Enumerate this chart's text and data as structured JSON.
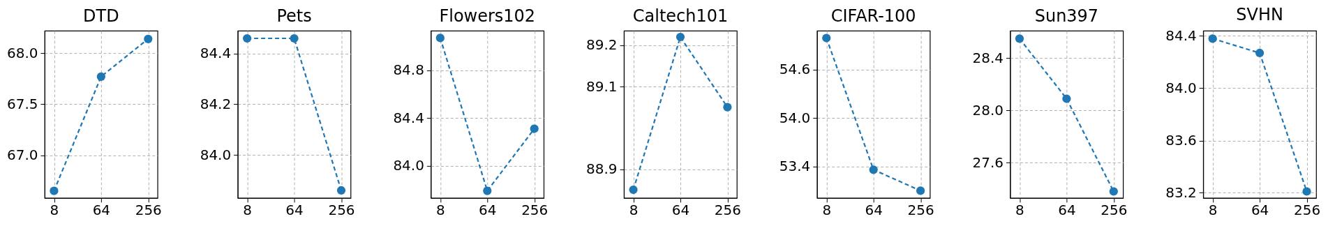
{
  "chart_data": [
    {
      "type": "line",
      "title": "DTD",
      "categories": [
        "8",
        "64",
        "256"
      ],
      "values": [
        66.65,
        67.77,
        68.14
      ],
      "color": "#1f77b4",
      "ylim": [
        66.58,
        68.22
      ],
      "yticks": [
        {
          "value": 67,
          "label": "67.0"
        },
        67.5,
        {
          "value": 68,
          "label": "68.0"
        }
      ],
      "grid": true,
      "marker": "circle",
      "line_style": "dashed"
    },
    {
      "type": "line",
      "title": "Pets",
      "categories": [
        "8",
        "64",
        "256"
      ],
      "values": [
        84.46,
        84.46,
        83.86
      ],
      "color": "#1f77b4",
      "ylim": [
        83.83,
        84.49
      ],
      "yticks": [
        {
          "value": 84,
          "label": "84.0"
        },
        84.2,
        84.4
      ],
      "grid": true,
      "marker": "circle",
      "line_style": "dashed"
    },
    {
      "type": "line",
      "title": "Flowers102",
      "categories": [
        "8",
        "64",
        "256"
      ],
      "values": [
        85.07,
        83.79,
        84.31
      ],
      "color": "#1f77b4",
      "ylim": [
        83.73,
        85.13
      ],
      "yticks": [
        {
          "value": 84,
          "label": "84.0"
        },
        84.4,
        84.8
      ],
      "grid": true,
      "marker": "circle",
      "line_style": "dashed"
    },
    {
      "type": "line",
      "title": "Caltech101",
      "categories": [
        "8",
        "64",
        "256"
      ],
      "values": [
        88.85,
        89.22,
        89.05
      ],
      "color": "#1f77b4",
      "ylim": [
        88.83,
        89.235
      ],
      "yticks": [
        88.9,
        89.1,
        89.2
      ],
      "grid": true,
      "marker": "circle",
      "line_style": "dashed"
    },
    {
      "type": "line",
      "title": "CIFAR-100",
      "categories": [
        "8",
        "64",
        "256"
      ],
      "values": [
        54.99,
        53.36,
        53.1
      ],
      "color": "#1f77b4",
      "ylim": [
        53.01,
        55.08
      ],
      "yticks": [
        53.4,
        {
          "value": 54,
          "label": "54.0"
        },
        54.6
      ],
      "grid": true,
      "marker": "circle",
      "line_style": "dashed"
    },
    {
      "type": "line",
      "title": "Sun397",
      "categories": [
        "8",
        "64",
        "256"
      ],
      "values": [
        28.55,
        28.09,
        27.38
      ],
      "color": "#1f77b4",
      "ylim": [
        27.33,
        28.61
      ],
      "yticks": [
        27.6,
        {
          "value": 28,
          "label": "28.0"
        },
        28.4
      ],
      "grid": true,
      "marker": "circle",
      "line_style": "dashed"
    },
    {
      "type": "line",
      "title": "SVHN",
      "categories": [
        "8",
        "64",
        "256"
      ],
      "values": [
        84.38,
        84.27,
        83.21
      ],
      "color": "#1f77b4",
      "ylim": [
        83.16,
        84.44
      ],
      "yticks": [
        83.2,
        83.6,
        {
          "value": 84,
          "label": "84.0"
        },
        84.4
      ],
      "grid": true,
      "marker": "circle",
      "line_style": "dashed"
    }
  ]
}
